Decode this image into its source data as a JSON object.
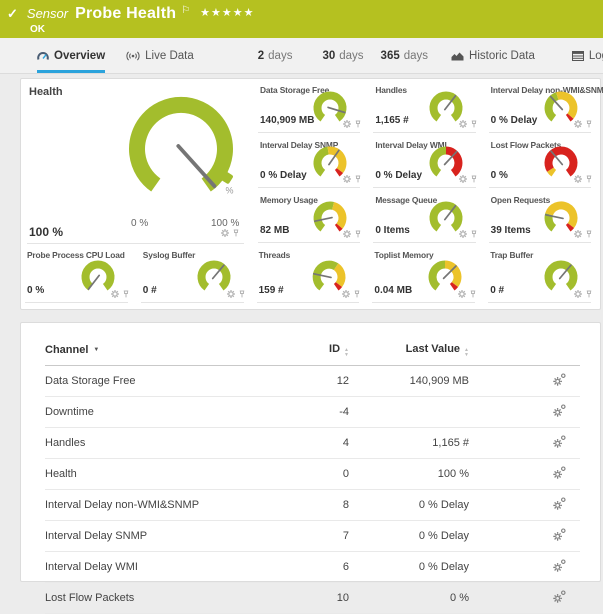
{
  "colors": {
    "header_bg": "#b5c120",
    "accent_blue": "#2ba3dc",
    "green": "#a3bd2d",
    "yellow": "#ecc32a",
    "red": "#d8231e",
    "needle": "#757575"
  },
  "header": {
    "check_icon": "✓",
    "type_label": "Sensor",
    "title": "Probe Health",
    "flag_icon": "⚐",
    "stars": "★★★★★",
    "status": "OK"
  },
  "tabs": [
    {
      "label": "Overview",
      "icon": "gauge-icon",
      "active": true
    },
    {
      "label": "Live Data",
      "icon": "live-data-icon"
    },
    {
      "num": "2",
      "word": "days"
    },
    {
      "num": "30",
      "word": "days"
    },
    {
      "num": "365",
      "word": "days"
    },
    {
      "label": "Historic Data",
      "icon": "historic-data-icon"
    },
    {
      "label": "Log",
      "icon": "log-icon"
    }
  ],
  "health": {
    "label": "Health",
    "value": "100 %",
    "scale_min": "0 %",
    "scale_max": "100 %",
    "unit": "%",
    "needle_deg": 138,
    "segments": [
      {
        "color": "green",
        "frac": 1
      }
    ]
  },
  "gauges_top": [
    {
      "label": "Data Storage Free",
      "value": "140,909 MB",
      "needle_deg": 107,
      "segments": [
        {
          "color": "green",
          "frac": 1
        }
      ]
    },
    {
      "label": "Handles",
      "value": "1,165 #",
      "needle_deg": 38,
      "segments": [
        {
          "color": "green",
          "frac": 1
        }
      ]
    },
    {
      "label": "Interval Delay non-WMI&SNMP",
      "value": "0 % Delay",
      "needle_deg": 318,
      "segments": [
        {
          "color": "green",
          "frac": 0.44
        },
        {
          "color": "yellow",
          "frac": 0.51
        },
        {
          "color": "red",
          "frac": 0.05
        }
      ]
    },
    {
      "label": "Interval Delay SNMP",
      "value": "0 % Delay",
      "needle_deg": 35,
      "segments": [
        {
          "color": "green",
          "frac": 0.47
        },
        {
          "color": "yellow",
          "frac": 0.47
        },
        {
          "color": "red",
          "frac": 0.06
        }
      ]
    },
    {
      "label": "Interval Delay WMI",
      "value": "0 % Delay",
      "needle_deg": 43,
      "segments": [
        {
          "color": "green",
          "frac": 0.5
        },
        {
          "color": "red",
          "frac": 0.5
        }
      ]
    },
    {
      "label": "Lost Flow Packets",
      "value": "0 %",
      "needle_deg": 320,
      "segments": [
        {
          "color": "yellow",
          "frac": 0.08
        },
        {
          "color": "red",
          "frac": 0.92
        }
      ]
    },
    {
      "label": "Memory Usage",
      "value": "82 MB",
      "needle_deg": 258,
      "segments": [
        {
          "color": "green",
          "frac": 0.55
        },
        {
          "color": "yellow",
          "frac": 0.4
        },
        {
          "color": "red",
          "frac": 0.05
        }
      ]
    },
    {
      "label": "Message Queue",
      "value": "0 Items",
      "needle_deg": 38,
      "segments": [
        {
          "color": "green",
          "frac": 1
        }
      ]
    },
    {
      "label": "Open Requests",
      "value": "39 Items",
      "needle_deg": 282,
      "segments": [
        {
          "color": "green",
          "frac": 0.25
        },
        {
          "color": "yellow",
          "frac": 0.69
        },
        {
          "color": "red",
          "frac": 0.06
        }
      ]
    }
  ],
  "gauges_bottom": [
    {
      "label": "Probe Process CPU Load",
      "value": "0 %",
      "needle_deg": 218,
      "segments": [
        {
          "color": "green",
          "frac": 1
        }
      ]
    },
    {
      "label": "Syslog Buffer",
      "value": "0 #",
      "needle_deg": 40,
      "segments": [
        {
          "color": "green",
          "frac": 1
        }
      ]
    },
    {
      "label": "Threads",
      "value": "159 #",
      "needle_deg": 282,
      "segments": [
        {
          "color": "green",
          "frac": 0.62
        },
        {
          "color": "yellow",
          "frac": 0.32
        },
        {
          "color": "red",
          "frac": 0.06
        }
      ]
    },
    {
      "label": "Toplist Memory",
      "value": "0.04 MB",
      "needle_deg": 45,
      "segments": [
        {
          "color": "green",
          "frac": 0.5
        },
        {
          "color": "yellow",
          "frac": 0.44
        },
        {
          "color": "red",
          "frac": 0.06
        }
      ]
    },
    {
      "label": "Trap Buffer",
      "value": "0 #",
      "needle_deg": 40,
      "segments": [
        {
          "color": "green",
          "frac": 1
        }
      ]
    }
  ],
  "table": {
    "columns": [
      {
        "label": "Channel",
        "sort": "desc"
      },
      {
        "label": "ID",
        "sort": "both"
      },
      {
        "label": "Last Value",
        "sort": "both"
      }
    ],
    "rows": [
      {
        "channel": "Data Storage Free",
        "id": "12",
        "last_value": "140,909 MB"
      },
      {
        "channel": "Downtime",
        "id": "-4",
        "last_value": ""
      },
      {
        "channel": "Handles",
        "id": "4",
        "last_value": "1,165 #"
      },
      {
        "channel": "Health",
        "id": "0",
        "last_value": "100 %"
      },
      {
        "channel": "Interval Delay non-WMI&SNMP",
        "id": "8",
        "last_value": "0 % Delay"
      },
      {
        "channel": "Interval Delay SNMP",
        "id": "7",
        "last_value": "0 % Delay"
      },
      {
        "channel": "Interval Delay WMI",
        "id": "6",
        "last_value": "0 % Delay"
      },
      {
        "channel": "Lost Flow Packets",
        "id": "10",
        "last_value": "0 %"
      }
    ]
  }
}
